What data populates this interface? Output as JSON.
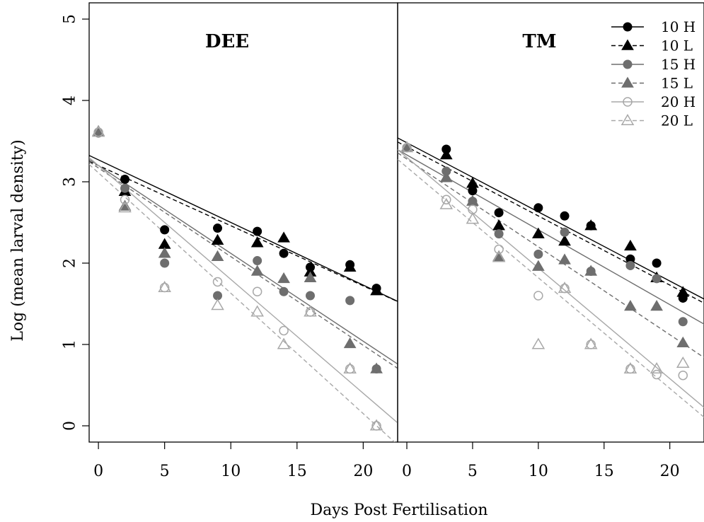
{
  "chart_data": {
    "type": "scatter",
    "xlabel": "Days Post Fertilisation",
    "ylabel": "Log (mean larval density)",
    "ylim": [
      -0.2,
      5.2
    ],
    "y_ticks": [
      0,
      1,
      2,
      3,
      4,
      5
    ],
    "x_ticks": [
      0,
      5,
      10,
      15,
      20
    ],
    "legend_position": "top-right",
    "legend": [
      {
        "label": "10 H",
        "color": "#000000",
        "marker": "circle-filled",
        "line": "solid"
      },
      {
        "label": "10 L",
        "color": "#000000",
        "marker": "triangle-filled",
        "line": "dashed"
      },
      {
        "label": "15 H",
        "color": "#6e6e6e",
        "marker": "circle-filled",
        "line": "solid"
      },
      {
        "label": "15 L",
        "color": "#6e6e6e",
        "marker": "triangle-filled",
        "line": "dashed"
      },
      {
        "label": "20 H",
        "color": "#a8a8a8",
        "marker": "circle-open",
        "line": "solid"
      },
      {
        "label": "20 L",
        "color": "#a8a8a8",
        "marker": "triangle-open",
        "line": "dashed"
      }
    ],
    "panels": [
      {
        "title": "DEE",
        "xlim": [
          -0.7,
          22.6
        ],
        "series": [
          {
            "name": "10 H",
            "x": [
              2,
              5,
              9,
              12,
              14,
              16,
              19,
              21
            ],
            "y": [
              3.03,
              2.41,
              2.43,
              2.39,
              2.12,
              1.95,
              1.98,
              1.69
            ],
            "fit": [
              3.27,
              -0.077
            ]
          },
          {
            "name": "10 L",
            "x": [
              2,
              5,
              9,
              12,
              14,
              16,
              19,
              21
            ],
            "y": [
              2.88,
              2.23,
              2.28,
              2.25,
              2.31,
              1.89,
              1.95,
              1.66
            ],
            "fit": [
              3.2,
              -0.074
            ]
          },
          {
            "name": "15 H",
            "x": [
              0,
              2,
              5,
              9,
              12,
              14,
              16,
              19,
              21
            ],
            "y": [
              3.6,
              2.92,
              2.0,
              1.6,
              2.03,
              1.65,
              1.6,
              1.54,
              0.7
            ],
            "fit": [
              3.2,
              -0.108
            ]
          },
          {
            "name": "15 L",
            "x": [
              0,
              2,
              5,
              9,
              12,
              14,
              16,
              19,
              21
            ],
            "y": [
              3.62,
              2.7,
              2.12,
              2.08,
              1.9,
              1.81,
              1.82,
              1.01,
              0.7
            ],
            "fit": [
              3.17,
              -0.109
            ]
          },
          {
            "name": "20 H",
            "x": [
              0,
              2,
              5,
              9,
              12,
              14,
              16,
              19,
              21
            ],
            "y": [
              3.61,
              2.78,
              1.7,
              1.77,
              1.65,
              1.17,
              1.4,
              0.7,
              0.0
            ],
            "fit": [
              3.2,
              -0.14
            ]
          },
          {
            "name": "20 L",
            "x": [
              0,
              2,
              5,
              9,
              12,
              14,
              16,
              19,
              21
            ],
            "y": [
              3.61,
              2.68,
              1.7,
              1.48,
              1.4,
              1.0,
              1.4,
              0.7,
              0.0
            ],
            "fit": [
              3.11,
              -0.148
            ]
          }
        ]
      },
      {
        "title": "TM",
        "xlim": [
          -0.7,
          22.6
        ],
        "series": [
          {
            "name": "10 H",
            "x": [
              0,
              3,
              5,
              7,
              10,
              12,
              14,
              17,
              19,
              21
            ],
            "y": [
              3.42,
              3.4,
              2.89,
              2.62,
              2.68,
              2.58,
              2.46,
              2.05,
              2.0,
              1.57
            ],
            "fit": [
              3.48,
              -0.085
            ]
          },
          {
            "name": "10 L",
            "x": [
              0,
              3,
              5,
              7,
              10,
              12,
              14,
              17,
              19,
              21
            ],
            "y": [
              3.42,
              3.33,
              2.98,
              2.46,
              2.36,
              2.27,
              2.46,
              2.21,
              1.82,
              1.64
            ],
            "fit": [
              3.43,
              -0.085
            ]
          },
          {
            "name": "15 H",
            "x": [
              0,
              3,
              5,
              7,
              10,
              12,
              14,
              17,
              19,
              21
            ],
            "y": [
              3.42,
              3.13,
              2.76,
              2.36,
              2.11,
              2.38,
              1.9,
              1.97,
              1.81,
              1.28
            ],
            "fit": [
              3.33,
              -0.092
            ]
          },
          {
            "name": "15 L",
            "x": [
              0,
              3,
              5,
              7,
              10,
              12,
              14,
              17,
              19,
              21
            ],
            "y": [
              3.42,
              3.05,
              2.76,
              2.08,
              1.96,
              2.04,
              1.9,
              1.47,
              1.47,
              1.02
            ],
            "fit": [
              3.28,
              -0.108
            ]
          },
          {
            "name": "20 H",
            "x": [
              0,
              3,
              5,
              7,
              10,
              12,
              14,
              17,
              19,
              21
            ],
            "y": [
              3.42,
              2.78,
              2.66,
              2.17,
              1.6,
              1.69,
              1.0,
              0.7,
              0.63,
              0.62
            ],
            "fit": [
              3.3,
              -0.136
            ]
          },
          {
            "name": "20 L",
            "x": [
              0,
              3,
              5,
              7,
              10,
              12,
              14,
              17,
              19,
              21
            ],
            "y": [
              3.42,
              2.72,
              2.54,
              2.07,
              1.0,
              1.69,
              1.0,
              0.7,
              0.7,
              0.77
            ],
            "fit": [
              3.18,
              -0.136
            ]
          }
        ]
      }
    ]
  }
}
